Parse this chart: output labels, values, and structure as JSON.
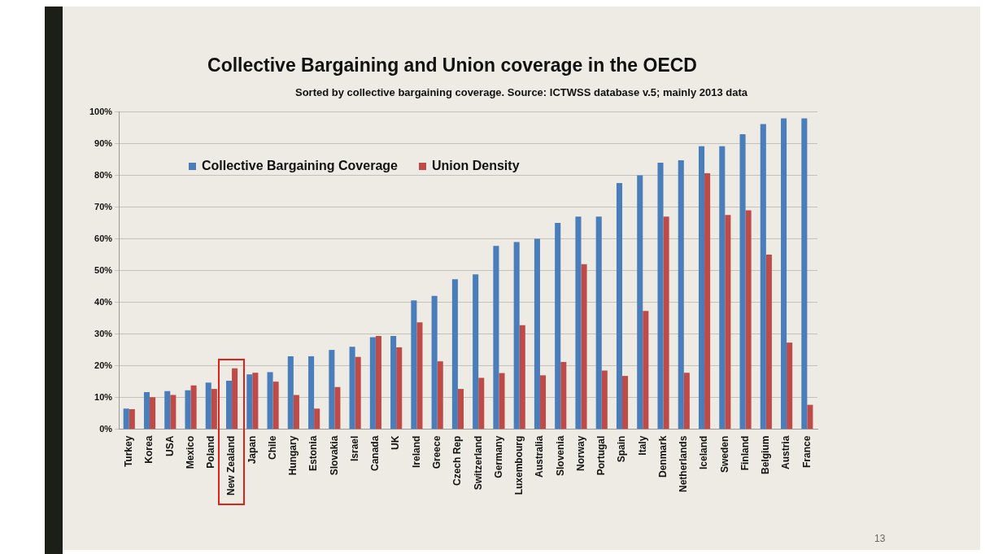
{
  "chart_data": {
    "type": "bar",
    "title": "Collective Bargaining and Union coverage in the OECD",
    "subtitle": "Sorted by collective bargaining coverage. Source: ICTWSS database v.5; mainly 2013 data",
    "categories": [
      "Turkey",
      "Korea",
      "USA",
      "Mexico",
      "Poland",
      "New Zealand",
      "Japan",
      "Chile",
      "Hungary",
      "Estonia",
      "Slovakia",
      "Israel",
      "Canada",
      "UK",
      "Ireland",
      "Greece",
      "Czech Rep",
      "Switzerland",
      "Germany",
      "Luxembourg",
      "Australia",
      "Slovenia",
      "Norway",
      "Portugal",
      "Spain",
      "Italy",
      "Denmark",
      "Netherlands",
      "Iceland",
      "Sweden",
      "Finland",
      "Belgium",
      "Austria",
      "France"
    ],
    "series": [
      {
        "name": "Collective Bargaining Coverage",
        "color": "#4a7ebb",
        "values": [
          6.5,
          11.7,
          12,
          12.3,
          14.7,
          15.3,
          17.3,
          18,
          23,
          23,
          25,
          26,
          29,
          29.4,
          40.6,
          42,
          47.3,
          48.8,
          57.8,
          59,
          60,
          65,
          67,
          67,
          77.6,
          80,
          84,
          84.8,
          89.2,
          89.2,
          93,
          96.2,
          98,
          98
        ]
      },
      {
        "name": "Union Density",
        "color": "#be4b48",
        "values": [
          6.3,
          10.1,
          10.8,
          13.8,
          12.7,
          19.2,
          17.8,
          15,
          10.8,
          6.5,
          13.3,
          22.8,
          29.4,
          25.8,
          33.7,
          21.4,
          12.7,
          16.2,
          17.7,
          32.8,
          17,
          21.2,
          52,
          18.5,
          16.8,
          37.3,
          67,
          17.8,
          80.7,
          67.5,
          69,
          55,
          27.3,
          7.7
        ]
      }
    ],
    "ylim": [
      0,
      100
    ],
    "yticks": [
      {
        "value": 0,
        "label": "0%"
      },
      {
        "value": 10,
        "label": "10%"
      },
      {
        "value": 20,
        "label": "20%"
      },
      {
        "value": 30,
        "label": "30%"
      },
      {
        "value": 40,
        "label": "40%"
      },
      {
        "value": 50,
        "label": "50%"
      },
      {
        "value": 60,
        "label": "60%"
      },
      {
        "value": 70,
        "label": "70%"
      },
      {
        "value": 80,
        "label": "80%"
      },
      {
        "value": 90,
        "label": "90%"
      },
      {
        "value": 100,
        "label": "100%"
      }
    ],
    "grid": "y",
    "legend": "top left",
    "annotations": [
      "13"
    ]
  }
}
